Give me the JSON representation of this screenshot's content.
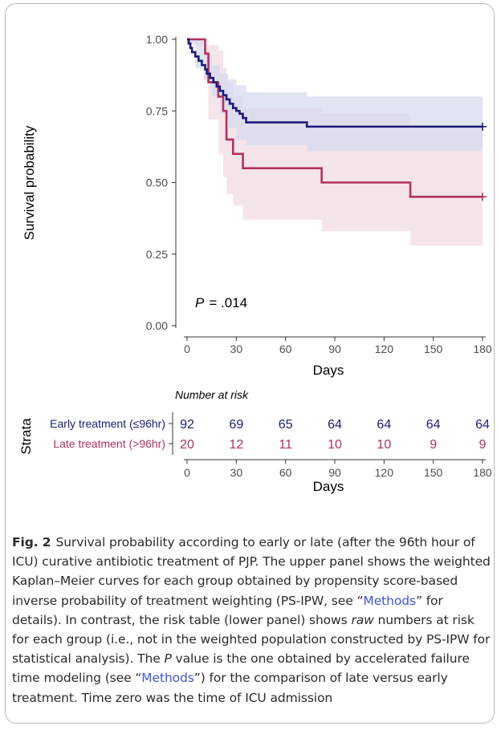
{
  "chart_data": [
    {
      "type": "line",
      "subtype": "kaplan-meier",
      "ylabel": "Survival probability",
      "xlabel": "Days",
      "xlim": [
        0,
        180
      ],
      "ylim": [
        0,
        1
      ],
      "x_ticks": [
        "0",
        "30",
        "60",
        "90",
        "120",
        "150",
        "180"
      ],
      "y_ticks": [
        "0.00",
        "0.25",
        "0.50",
        "0.75",
        "1.00"
      ],
      "annotation": {
        "p_label": "P",
        "p_value": "= .014"
      },
      "grid": false,
      "series": [
        {
          "name": "Early treatment (≤96hr)",
          "color": "#1b1b7a",
          "band_color": "#d6dbef",
          "steps": [
            [
              0,
              1.0
            ],
            [
              1,
              0.985
            ],
            [
              2,
              0.97
            ],
            [
              3,
              0.955
            ],
            [
              5,
              0.94
            ],
            [
              7,
              0.925
            ],
            [
              9,
              0.91
            ],
            [
              11,
              0.895
            ],
            [
              12,
              0.88
            ],
            [
              14,
              0.865
            ],
            [
              16,
              0.85
            ],
            [
              18,
              0.835
            ],
            [
              20,
              0.82
            ],
            [
              22,
              0.805
            ],
            [
              24,
              0.79
            ],
            [
              26,
              0.775
            ],
            [
              28,
              0.76
            ],
            [
              30,
              0.75
            ],
            [
              32,
              0.74
            ],
            [
              34,
              0.725
            ],
            [
              36,
              0.71
            ],
            [
              73,
              0.695
            ],
            [
              180,
              0.695
            ]
          ],
          "ci_lower": [
            [
              0,
              0.99
            ],
            [
              5,
              0.9
            ],
            [
              10,
              0.86
            ],
            [
              15,
              0.8
            ],
            [
              20,
              0.74
            ],
            [
              25,
              0.69
            ],
            [
              30,
              0.65
            ],
            [
              36,
              0.63
            ],
            [
              73,
              0.61
            ],
            [
              180,
              0.61
            ]
          ],
          "ci_upper": [
            [
              0,
              1.0
            ],
            [
              5,
              1.0
            ],
            [
              10,
              0.95
            ],
            [
              15,
              0.91
            ],
            [
              20,
              0.88
            ],
            [
              25,
              0.86
            ],
            [
              30,
              0.84
            ],
            [
              36,
              0.815
            ],
            [
              73,
              0.8
            ],
            [
              180,
              0.8
            ]
          ]
        },
        {
          "name": "Late treatment (>96hr)",
          "color": "#b0325e",
          "band_color": "#f3dfe6",
          "steps": [
            [
              0,
              1.0
            ],
            [
              11,
              1.0
            ],
            [
              11,
              0.95
            ],
            [
              13,
              0.85
            ],
            [
              19,
              0.85
            ],
            [
              19,
              0.8
            ],
            [
              22,
              0.8
            ],
            [
              22,
              0.75
            ],
            [
              24,
              0.75
            ],
            [
              24,
              0.65
            ],
            [
              28,
              0.65
            ],
            [
              28,
              0.6
            ],
            [
              34,
              0.6
            ],
            [
              34,
              0.55
            ],
            [
              82,
              0.55
            ],
            [
              82,
              0.5
            ],
            [
              136,
              0.5
            ],
            [
              136,
              0.45
            ],
            [
              180,
              0.45
            ]
          ],
          "ci_lower": [
            [
              0,
              0.98
            ],
            [
              11,
              0.85
            ],
            [
              13,
              0.72
            ],
            [
              19,
              0.6
            ],
            [
              22,
              0.52
            ],
            [
              24,
              0.46
            ],
            [
              28,
              0.42
            ],
            [
              34,
              0.37
            ],
            [
              82,
              0.33
            ],
            [
              136,
              0.28
            ],
            [
              180,
              0.28
            ]
          ],
          "ci_upper": [
            [
              0,
              1.0
            ],
            [
              11,
              1.0
            ],
            [
              13,
              0.98
            ],
            [
              19,
              0.96
            ],
            [
              22,
              0.9
            ],
            [
              24,
              0.85
            ],
            [
              28,
              0.8
            ],
            [
              34,
              0.76
            ],
            [
              82,
              0.74
            ],
            [
              136,
              0.7
            ],
            [
              180,
              0.7
            ]
          ]
        }
      ]
    },
    {
      "type": "table",
      "title": "Number at risk",
      "row_axis_label": "Strata",
      "xlabel": "Days",
      "x_ticks": [
        "0",
        "30",
        "60",
        "90",
        "120",
        "150",
        "180"
      ],
      "x": [
        0,
        30,
        60,
        90,
        120,
        150,
        180
      ],
      "rows": [
        {
          "name": "Early treatment (≤96hr)",
          "color": "#1b1b7a",
          "values": [
            92,
            69,
            65,
            64,
            64,
            64,
            64
          ]
        },
        {
          "name": "Late treatment (>96hr)",
          "color": "#b0325e",
          "values": [
            20,
            12,
            11,
            10,
            10,
            9,
            9
          ]
        }
      ]
    }
  ],
  "caption": {
    "label": "Fig. 2",
    "t1": "Survival probability according to early or late (after the 96th hour of ICU) curative antibiotic treatment of PJP. The upper panel shows the weighted Kaplan–Meier curves for each group obtained by propensity score-based inverse probability of treatment weighting (PS-IPW, see “",
    "link1": "Methods",
    "t2": "” for details). In contrast, the risk table (lower panel) shows ",
    "raw": "raw",
    "t3": " numbers at risk for each group (i.e., not in the weighted population constructed by PS-IPW for statistical analysis). The ",
    "p": "P",
    "t4": " value is the one obtained by accelerated failure time modeling (see “",
    "link2": "Methods",
    "t5": "”) for the comparison of late versus early treatment. Time zero was the time of ICU admission"
  }
}
